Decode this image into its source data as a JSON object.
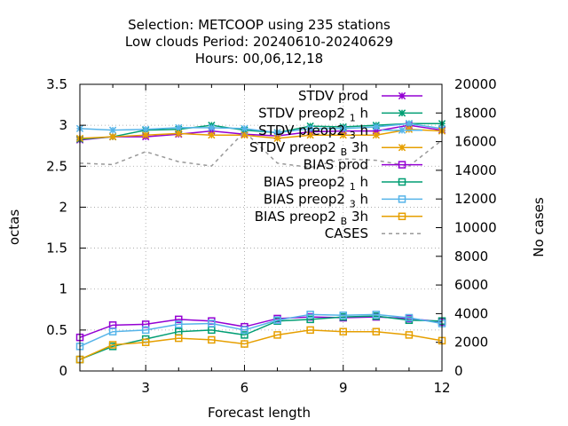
{
  "chart_data": {
    "type": "line",
    "title_lines": [
      "Selection: METCOOP using   235 stations",
      "Low clouds   Period: 20240610-20240629",
      "Hours:  00,06,12,18"
    ],
    "xlabel": "Forecast length",
    "ylabel": "octas",
    "y2label": "No cases",
    "xlim": [
      1,
      12
    ],
    "ylim": [
      0,
      3.5
    ],
    "y2lim": [
      0,
      20000
    ],
    "x_ticks": [
      3,
      6,
      9,
      12
    ],
    "y_ticks": [
      0,
      0.5,
      1,
      1.5,
      2,
      2.5,
      3,
      3.5
    ],
    "y2_ticks": [
      0,
      2000,
      4000,
      6000,
      8000,
      10000,
      12000,
      14000,
      16000,
      18000,
      20000
    ],
    "grid": true,
    "legend_position": "top-right",
    "x": [
      1,
      2,
      3,
      4,
      5,
      6,
      7,
      8,
      9,
      10,
      11,
      12
    ],
    "series": [
      {
        "name": "STDV prod",
        "legend_parts": [
          "STDV prod"
        ],
        "color": "#9400d3",
        "marker": "star",
        "axis": "y1",
        "values": [
          2.82,
          2.86,
          2.86,
          2.89,
          2.93,
          2.89,
          2.87,
          2.92,
          2.93,
          2.93,
          3.0,
          2.94
        ]
      },
      {
        "name": "STDV preop2 1 h",
        "legend_parts": [
          "STDV preop2 ",
          "1",
          " h"
        ],
        "color": "#009e73",
        "marker": "star",
        "axis": "y1",
        "values": [
          2.83,
          2.86,
          2.94,
          2.95,
          3.0,
          2.94,
          2.91,
          2.99,
          2.98,
          3.0,
          3.02,
          3.02
        ]
      },
      {
        "name": "STDV preop2 3 h",
        "legend_parts": [
          "STDV preop2 ",
          "3",
          " h"
        ],
        "color": "#56b4e9",
        "marker": "star",
        "axis": "y1",
        "values": [
          2.96,
          2.94,
          2.95,
          2.97,
          2.97,
          2.96,
          2.91,
          2.96,
          2.96,
          2.98,
          3.02,
          2.96
        ]
      },
      {
        "name": "STDV preop2 B 3h",
        "legend_parts": [
          "STDV preop2 ",
          "B",
          " 3h"
        ],
        "color": "#e69f00",
        "marker": "star",
        "axis": "y1",
        "values": [
          2.84,
          2.86,
          2.88,
          2.9,
          2.88,
          2.88,
          2.84,
          2.88,
          2.88,
          2.88,
          2.95,
          2.93
        ]
      },
      {
        "name": "BIAS prod",
        "legend_parts": [
          "BIAS prod"
        ],
        "color": "#9400d3",
        "marker": "square",
        "axis": "y1",
        "values": [
          0.41,
          0.56,
          0.57,
          0.63,
          0.61,
          0.54,
          0.64,
          0.66,
          0.65,
          0.66,
          0.64,
          0.6
        ]
      },
      {
        "name": "BIAS preop2 1 h",
        "legend_parts": [
          "BIAS preop2 ",
          "1",
          " h"
        ],
        "color": "#009e73",
        "marker": "square",
        "axis": "y1",
        "values": [
          0.14,
          0.3,
          0.39,
          0.48,
          0.5,
          0.44,
          0.61,
          0.63,
          0.66,
          0.67,
          0.62,
          0.61
        ]
      },
      {
        "name": "BIAS preop2 3 h",
        "legend_parts": [
          "BIAS preop2 ",
          "3",
          " h"
        ],
        "color": "#56b4e9",
        "marker": "square",
        "axis": "y1",
        "values": [
          0.3,
          0.48,
          0.5,
          0.57,
          0.58,
          0.5,
          0.62,
          0.69,
          0.68,
          0.69,
          0.65,
          0.58
        ]
      },
      {
        "name": "BIAS preop2 B 3h",
        "legend_parts": [
          "BIAS preop2 ",
          "B",
          " 3h"
        ],
        "color": "#e69f00",
        "marker": "square",
        "axis": "y1",
        "values": [
          0.14,
          0.32,
          0.35,
          0.4,
          0.38,
          0.33,
          0.44,
          0.5,
          0.48,
          0.48,
          0.44,
          0.37
        ]
      },
      {
        "name": "CASES",
        "legend_parts": [
          "CASES"
        ],
        "color": "#999999",
        "marker": "none",
        "dashed": true,
        "axis": "y2",
        "values": [
          14500,
          14400,
          15300,
          14600,
          14300,
          16700,
          14500,
          14200,
          14800,
          14700,
          14300,
          16100
        ]
      }
    ]
  }
}
